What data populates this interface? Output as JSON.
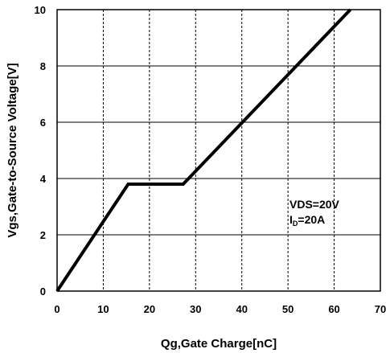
{
  "chart_data": {
    "type": "line",
    "title": "",
    "xlabel": "Qg,Gate Charge[nC]",
    "ylabel": "Vgs,Gate-to-Source Voltage[V]",
    "xlim": [
      0,
      70
    ],
    "ylim": [
      0,
      10
    ],
    "x_ticks": [
      0,
      10,
      20,
      30,
      40,
      50,
      60,
      70
    ],
    "y_ticks": [
      0,
      2,
      4,
      6,
      8,
      10
    ],
    "x_tick_labels": [
      "0",
      "10",
      "20",
      "30",
      "40",
      "50",
      "60",
      "70"
    ],
    "y_tick_labels": [
      "0",
      "2",
      "4",
      "6",
      "8",
      "10"
    ],
    "grid": {
      "vertical": "dashed",
      "horizontal": "solid"
    },
    "series": [
      {
        "x": [
          0,
          15.4,
          27.3,
          63.5
        ],
        "y": [
          0,
          3.8,
          3.8,
          10
        ],
        "color": "#000000"
      }
    ],
    "annotations": {
      "line1": "VDS=20V",
      "line2_prefix": "I",
      "line2_sub": "D",
      "line2_suffix": "=20A"
    }
  }
}
